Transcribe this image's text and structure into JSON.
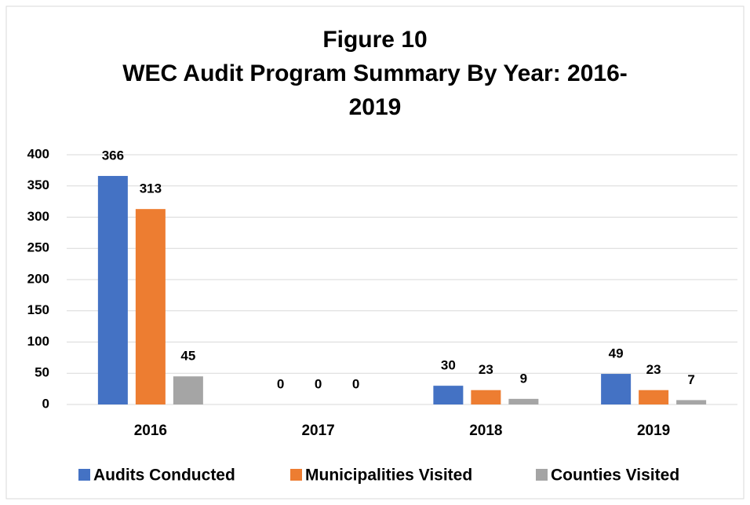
{
  "chart_data": {
    "type": "bar",
    "title": [
      "Figure 10",
      "WEC Audit Program Summary By Year: 2016-",
      "2019"
    ],
    "categories": [
      "2016",
      "2017",
      "2018",
      "2019"
    ],
    "series": [
      {
        "name": "Audits Conducted",
        "color": "#4472c4",
        "values": [
          366,
          0,
          30,
          49
        ]
      },
      {
        "name": "Municipalities Visited",
        "color": "#ed7d31",
        "values": [
          313,
          0,
          23,
          23
        ]
      },
      {
        "name": "Counties Visited",
        "color": "#a5a5a5",
        "values": [
          45,
          0,
          9,
          7
        ]
      }
    ],
    "ylim": [
      0,
      400
    ],
    "yticks": [
      0,
      50,
      100,
      150,
      200,
      250,
      300,
      350,
      400
    ],
    "grid": true,
    "legend": "bottom"
  }
}
